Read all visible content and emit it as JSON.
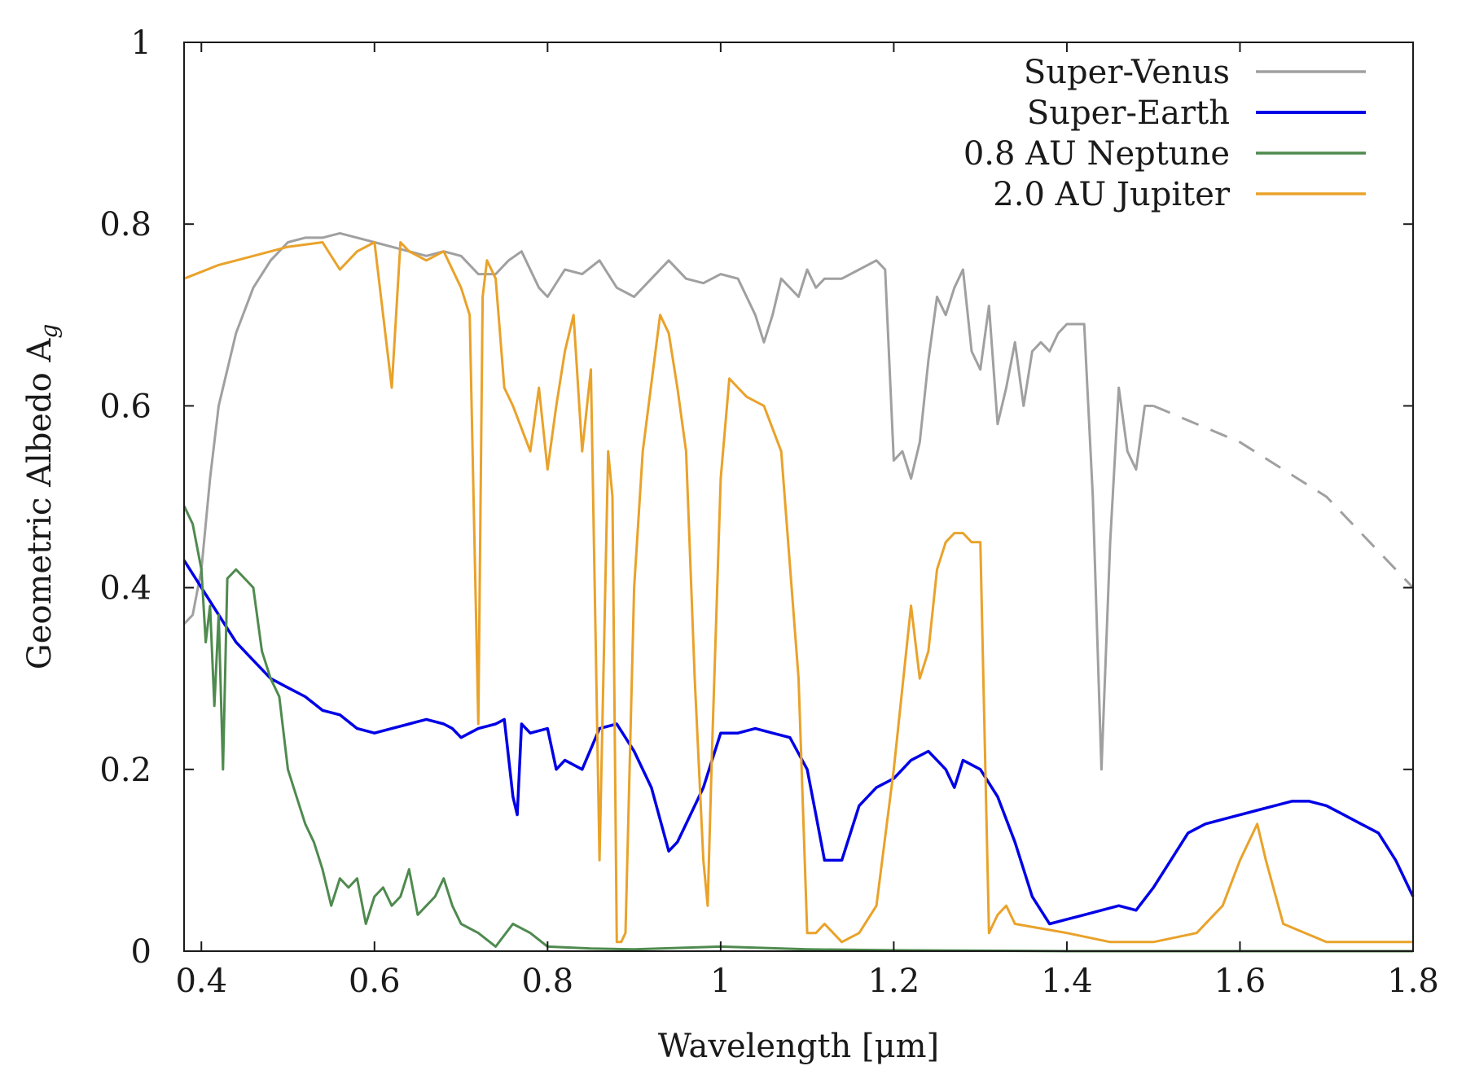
{
  "chart_data": {
    "type": "line",
    "title": "",
    "xlabel": "Wavelength [μm]",
    "ylabel": "Geometric Albedo A",
    "ylabel_subscript": "g",
    "xlim": [
      0.38,
      1.8
    ],
    "ylim": [
      0,
      1
    ],
    "x_ticks": [
      0.4,
      0.6,
      0.8,
      1.0,
      1.2,
      1.4,
      1.6,
      1.8
    ],
    "x_tick_labels": [
      "0.4",
      "0.6",
      "0.8",
      "1",
      "1.2",
      "1.4",
      "1.6",
      "1.8"
    ],
    "y_ticks": [
      0,
      0.2,
      0.4,
      0.6,
      0.8,
      1.0
    ],
    "y_tick_labels": [
      "0",
      "0.2",
      "0.4",
      "0.6",
      "0.8",
      "1"
    ],
    "grid": false,
    "legend_position": "top-right",
    "series": [
      {
        "name": "Super-Venus",
        "color": "#a0a0a0",
        "x": [
          0.38,
          0.39,
          0.4,
          0.41,
          0.42,
          0.44,
          0.46,
          0.48,
          0.5,
          0.52,
          0.54,
          0.56,
          0.58,
          0.6,
          0.62,
          0.64,
          0.66,
          0.68,
          0.7,
          0.72,
          0.74,
          0.755,
          0.77,
          0.79,
          0.8,
          0.82,
          0.84,
          0.86,
          0.88,
          0.9,
          0.92,
          0.94,
          0.96,
          0.98,
          1.0,
          1.02,
          1.04,
          1.05,
          1.06,
          1.07,
          1.09,
          1.1,
          1.11,
          1.12,
          1.14,
          1.16,
          1.18,
          1.19,
          1.2,
          1.21,
          1.22,
          1.23,
          1.24,
          1.25,
          1.26,
          1.27,
          1.28,
          1.29,
          1.3,
          1.31,
          1.32,
          1.33,
          1.34,
          1.35,
          1.36,
          1.37,
          1.38,
          1.39,
          1.4,
          1.41,
          1.42,
          1.43,
          1.44,
          1.45,
          1.46,
          1.47,
          1.48,
          1.49,
          1.5
        ],
        "y": [
          0.36,
          0.37,
          0.42,
          0.52,
          0.6,
          0.68,
          0.73,
          0.76,
          0.78,
          0.785,
          0.785,
          0.79,
          0.785,
          0.78,
          0.775,
          0.77,
          0.765,
          0.77,
          0.765,
          0.745,
          0.745,
          0.76,
          0.77,
          0.73,
          0.72,
          0.75,
          0.745,
          0.76,
          0.73,
          0.72,
          0.74,
          0.76,
          0.74,
          0.735,
          0.745,
          0.74,
          0.7,
          0.67,
          0.7,
          0.74,
          0.72,
          0.75,
          0.73,
          0.74,
          0.74,
          0.75,
          0.76,
          0.75,
          0.54,
          0.55,
          0.52,
          0.56,
          0.65,
          0.72,
          0.7,
          0.73,
          0.75,
          0.66,
          0.64,
          0.71,
          0.58,
          0.62,
          0.67,
          0.6,
          0.66,
          0.67,
          0.66,
          0.68,
          0.69,
          0.69,
          0.69,
          0.5,
          0.2,
          0.45,
          0.62,
          0.55,
          0.53,
          0.6,
          0.6
        ]
      },
      {
        "name": "Super-Earth",
        "color": "#0000e6",
        "x": [
          0.38,
          0.4,
          0.42,
          0.44,
          0.46,
          0.48,
          0.5,
          0.52,
          0.54,
          0.56,
          0.58,
          0.6,
          0.62,
          0.64,
          0.66,
          0.68,
          0.69,
          0.7,
          0.72,
          0.74,
          0.75,
          0.76,
          0.765,
          0.77,
          0.78,
          0.8,
          0.81,
          0.82,
          0.84,
          0.86,
          0.88,
          0.9,
          0.92,
          0.94,
          0.95,
          0.96,
          0.98,
          1.0,
          1.02,
          1.04,
          1.06,
          1.08,
          1.1,
          1.11,
          1.12,
          1.14,
          1.16,
          1.18,
          1.2,
          1.22,
          1.24,
          1.26,
          1.27,
          1.28,
          1.3,
          1.32,
          1.34,
          1.36,
          1.38,
          1.4,
          1.42,
          1.44,
          1.46,
          1.48,
          1.5,
          1.52,
          1.54,
          1.56,
          1.58,
          1.6,
          1.62,
          1.64,
          1.66,
          1.68,
          1.7,
          1.72,
          1.74,
          1.76,
          1.78,
          1.8
        ],
        "y": [
          0.43,
          0.4,
          0.37,
          0.34,
          0.32,
          0.3,
          0.29,
          0.28,
          0.265,
          0.26,
          0.245,
          0.24,
          0.245,
          0.25,
          0.255,
          0.25,
          0.245,
          0.235,
          0.245,
          0.25,
          0.255,
          0.17,
          0.15,
          0.25,
          0.24,
          0.245,
          0.2,
          0.21,
          0.2,
          0.245,
          0.25,
          0.22,
          0.18,
          0.11,
          0.12,
          0.14,
          0.18,
          0.24,
          0.24,
          0.245,
          0.24,
          0.235,
          0.2,
          0.15,
          0.1,
          0.1,
          0.16,
          0.18,
          0.19,
          0.21,
          0.22,
          0.2,
          0.18,
          0.21,
          0.2,
          0.17,
          0.12,
          0.06,
          0.03,
          0.035,
          0.04,
          0.045,
          0.05,
          0.045,
          0.07,
          0.1,
          0.13,
          0.14,
          0.145,
          0.15,
          0.155,
          0.16,
          0.165,
          0.165,
          0.16,
          0.15,
          0.14,
          0.13,
          0.1,
          0.06
        ]
      },
      {
        "name": "0.8 AU Neptune",
        "color": "#4f8a4f",
        "x": [
          0.38,
          0.39,
          0.4,
          0.405,
          0.41,
          0.415,
          0.42,
          0.425,
          0.43,
          0.44,
          0.45,
          0.46,
          0.47,
          0.48,
          0.49,
          0.5,
          0.51,
          0.52,
          0.53,
          0.54,
          0.55,
          0.56,
          0.57,
          0.58,
          0.59,
          0.6,
          0.61,
          0.62,
          0.63,
          0.64,
          0.65,
          0.66,
          0.67,
          0.68,
          0.69,
          0.7,
          0.72,
          0.74,
          0.76,
          0.78,
          0.8,
          0.85,
          0.9,
          1.0,
          1.1,
          1.2,
          1.4,
          1.6,
          1.8
        ],
        "y": [
          0.49,
          0.47,
          0.42,
          0.34,
          0.38,
          0.27,
          0.37,
          0.2,
          0.41,
          0.42,
          0.41,
          0.4,
          0.33,
          0.3,
          0.28,
          0.2,
          0.17,
          0.14,
          0.12,
          0.09,
          0.05,
          0.08,
          0.07,
          0.08,
          0.03,
          0.06,
          0.07,
          0.05,
          0.06,
          0.09,
          0.04,
          0.05,
          0.06,
          0.08,
          0.05,
          0.03,
          0.02,
          0.005,
          0.03,
          0.02,
          0.005,
          0.003,
          0.002,
          0.005,
          0.002,
          0.001,
          0.0,
          0.0,
          0.0
        ]
      },
      {
        "name": "2.0 AU Jupiter",
        "color": "#e9a22a",
        "x": [
          0.38,
          0.42,
          0.46,
          0.5,
          0.54,
          0.56,
          0.58,
          0.6,
          0.61,
          0.62,
          0.63,
          0.64,
          0.66,
          0.68,
          0.7,
          0.71,
          0.72,
          0.725,
          0.73,
          0.735,
          0.74,
          0.75,
          0.76,
          0.78,
          0.79,
          0.8,
          0.81,
          0.82,
          0.83,
          0.84,
          0.85,
          0.86,
          0.87,
          0.875,
          0.88,
          0.885,
          0.89,
          0.9,
          0.91,
          0.93,
          0.94,
          0.95,
          0.96,
          0.97,
          0.98,
          0.985,
          0.99,
          1.0,
          1.01,
          1.02,
          1.03,
          1.05,
          1.07,
          1.09,
          1.1,
          1.11,
          1.12,
          1.14,
          1.16,
          1.18,
          1.2,
          1.22,
          1.23,
          1.24,
          1.25,
          1.26,
          1.27,
          1.28,
          1.29,
          1.3,
          1.31,
          1.32,
          1.33,
          1.34,
          1.4,
          1.45,
          1.5,
          1.55,
          1.58,
          1.6,
          1.62,
          1.63,
          1.65,
          1.7,
          1.8
        ],
        "y": [
          0.74,
          0.755,
          0.765,
          0.775,
          0.78,
          0.75,
          0.77,
          0.78,
          0.7,
          0.62,
          0.78,
          0.77,
          0.76,
          0.77,
          0.73,
          0.7,
          0.25,
          0.72,
          0.76,
          0.75,
          0.74,
          0.62,
          0.6,
          0.55,
          0.62,
          0.53,
          0.6,
          0.66,
          0.7,
          0.55,
          0.64,
          0.1,
          0.55,
          0.5,
          0.01,
          0.01,
          0.02,
          0.4,
          0.55,
          0.7,
          0.68,
          0.62,
          0.55,
          0.3,
          0.1,
          0.05,
          0.22,
          0.52,
          0.63,
          0.62,
          0.61,
          0.6,
          0.55,
          0.3,
          0.02,
          0.02,
          0.03,
          0.01,
          0.02,
          0.05,
          0.2,
          0.38,
          0.3,
          0.33,
          0.42,
          0.45,
          0.46,
          0.46,
          0.45,
          0.45,
          0.02,
          0.04,
          0.05,
          0.03,
          0.02,
          0.01,
          0.01,
          0.02,
          0.05,
          0.1,
          0.14,
          0.1,
          0.03,
          0.01,
          0.01
        ]
      }
    ],
    "extrapolation": {
      "series": "Super-Venus",
      "style": "dashed",
      "x": [
        1.5,
        1.6,
        1.7,
        1.8
      ],
      "y": [
        0.6,
        0.56,
        0.5,
        0.4
      ]
    }
  }
}
